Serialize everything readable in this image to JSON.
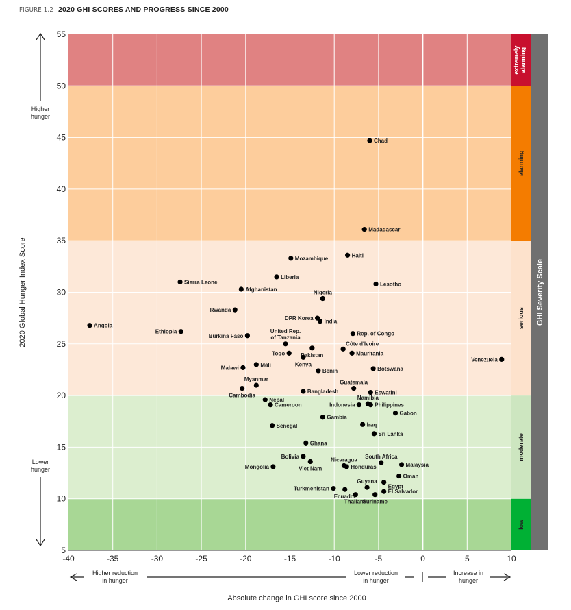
{
  "figure": {
    "number": "FIGURE 1.2",
    "title": "2020 GHI SCORES AND PROGRESS SINCE 2000"
  },
  "chart_data": {
    "type": "scatter",
    "title": "2020 GHI SCORES AND PROGRESS SINCE 2000",
    "xlabel": "Absolute change in GHI score since 2000",
    "ylabel": "2020 Global Hunger Index Score",
    "xlim": [
      -40,
      10
    ],
    "ylim": [
      5,
      55
    ],
    "xticks": [
      -40,
      -35,
      -30,
      -25,
      -20,
      -15,
      -10,
      -5,
      0,
      5,
      10
    ],
    "yticks": [
      5,
      10,
      15,
      20,
      25,
      30,
      35,
      40,
      45,
      50,
      55
    ],
    "severity_bands": [
      {
        "label": "low",
        "from": 5,
        "to": 10,
        "color": "#a8d795",
        "scale_color": "#00b034"
      },
      {
        "label": "moderate",
        "from": 10,
        "to": 20,
        "color": "#dceecf",
        "scale_color": "#cde6c0"
      },
      {
        "label": "serious",
        "from": 20,
        "to": 35,
        "color": "#fde8d8",
        "scale_color": "#fde2cc"
      },
      {
        "label": "alarming",
        "from": 35,
        "to": 50,
        "color": "#fdcd9c",
        "scale_color": "#f47c00"
      },
      {
        "label": "extremely alarming",
        "from": 50,
        "to": 55,
        "color": "#e08282",
        "scale_color": "#c8102e"
      }
    ],
    "severity_scale_label": "GHI Severity Scale",
    "y_annotations": {
      "higher": "Higher hunger",
      "lower": "Lower hunger"
    },
    "x_annotations": {
      "higher_reduction": "Higher reduction in hunger",
      "lower_reduction": "Lower reduction in hunger",
      "increase": "Increase in hunger"
    },
    "points": [
      {
        "name": "Chad",
        "x": -6.0,
        "y": 44.7,
        "pos": "right"
      },
      {
        "name": "Madagascar",
        "x": -6.6,
        "y": 36.1,
        "pos": "right"
      },
      {
        "name": "Haiti",
        "x": -8.5,
        "y": 33.6,
        "pos": "right"
      },
      {
        "name": "Mozambique",
        "x": -14.9,
        "y": 33.3,
        "pos": "right"
      },
      {
        "name": "Liberia",
        "x": -16.5,
        "y": 31.5,
        "pos": "right"
      },
      {
        "name": "Sierra Leone",
        "x": -27.4,
        "y": 31.0,
        "pos": "right"
      },
      {
        "name": "Lesotho",
        "x": -5.3,
        "y": 30.8,
        "pos": "right"
      },
      {
        "name": "Afghanistan",
        "x": -20.5,
        "y": 30.3,
        "pos": "right"
      },
      {
        "name": "Nigeria",
        "x": -11.3,
        "y": 29.4,
        "pos": "above"
      },
      {
        "name": "Rwanda",
        "x": -21.2,
        "y": 28.3,
        "pos": "left"
      },
      {
        "name": "DPR Korea",
        "x": -11.9,
        "y": 27.5,
        "pos": "left"
      },
      {
        "name": "India",
        "x": -11.6,
        "y": 27.2,
        "pos": "right"
      },
      {
        "name": "Angola",
        "x": -37.6,
        "y": 26.8,
        "pos": "right"
      },
      {
        "name": "Ethiopia",
        "x": -27.3,
        "y": 26.2,
        "pos": "left"
      },
      {
        "name": "Rep. of Congo",
        "x": -7.9,
        "y": 26.0,
        "pos": "right"
      },
      {
        "name": "Burkina Faso",
        "x": -19.8,
        "y": 25.8,
        "pos": "left"
      },
      {
        "name": "United Rep. of Tanzania",
        "x": -15.5,
        "y": 25.0,
        "pos": "above"
      },
      {
        "name": "Côte d'Ivoire",
        "x": -9.0,
        "y": 24.5,
        "pos": "right-up"
      },
      {
        "name": "Togo",
        "x": -15.1,
        "y": 24.1,
        "pos": "left"
      },
      {
        "name": "Pakistan",
        "x": -12.5,
        "y": 24.6,
        "pos": "below"
      },
      {
        "name": "Mauritania",
        "x": -8.0,
        "y": 24.1,
        "pos": "right"
      },
      {
        "name": "Kenya",
        "x": -13.5,
        "y": 23.7,
        "pos": "below"
      },
      {
        "name": "Venezuela",
        "x": 8.9,
        "y": 23.5,
        "pos": "left"
      },
      {
        "name": "Mali",
        "x": -18.8,
        "y": 23.0,
        "pos": "right"
      },
      {
        "name": "Malawi",
        "x": -20.3,
        "y": 22.7,
        "pos": "left"
      },
      {
        "name": "Botswana",
        "x": -5.6,
        "y": 22.6,
        "pos": "right"
      },
      {
        "name": "Benin",
        "x": -11.8,
        "y": 22.4,
        "pos": "right"
      },
      {
        "name": "Myanmar",
        "x": -18.8,
        "y": 21.0,
        "pos": "above"
      },
      {
        "name": "Cambodia",
        "x": -20.4,
        "y": 20.7,
        "pos": "below"
      },
      {
        "name": "Guatemala",
        "x": -7.8,
        "y": 20.7,
        "pos": "above"
      },
      {
        "name": "Bangladesh",
        "x": -13.5,
        "y": 20.4,
        "pos": "right"
      },
      {
        "name": "Eswatini",
        "x": -5.9,
        "y": 20.3,
        "pos": "right"
      },
      {
        "name": "Nepal",
        "x": -17.8,
        "y": 19.6,
        "pos": "right"
      },
      {
        "name": "Namibia",
        "x": -6.2,
        "y": 19.2,
        "pos": "above"
      },
      {
        "name": "Cameroon",
        "x": -17.2,
        "y": 19.1,
        "pos": "right"
      },
      {
        "name": "Indonesia",
        "x": -7.2,
        "y": 19.1,
        "pos": "left"
      },
      {
        "name": "Philippines",
        "x": -5.9,
        "y": 19.1,
        "pos": "right"
      },
      {
        "name": "Gabon",
        "x": -3.1,
        "y": 18.3,
        "pos": "right"
      },
      {
        "name": "Gambia",
        "x": -11.3,
        "y": 17.9,
        "pos": "right"
      },
      {
        "name": "Iraq",
        "x": -6.8,
        "y": 17.2,
        "pos": "right"
      },
      {
        "name": "Senegal",
        "x": -17.0,
        "y": 17.1,
        "pos": "right"
      },
      {
        "name": "Sri Lanka",
        "x": -5.5,
        "y": 16.3,
        "pos": "right"
      },
      {
        "name": "Ghana",
        "x": -13.2,
        "y": 15.4,
        "pos": "right"
      },
      {
        "name": "Bolivia",
        "x": -13.5,
        "y": 14.1,
        "pos": "left"
      },
      {
        "name": "Viet Nam",
        "x": -12.7,
        "y": 13.6,
        "pos": "below"
      },
      {
        "name": "South Africa",
        "x": -4.7,
        "y": 13.5,
        "pos": "above"
      },
      {
        "name": "Nicaragua",
        "x": -8.9,
        "y": 13.2,
        "pos": "above"
      },
      {
        "name": "Honduras",
        "x": -8.6,
        "y": 13.1,
        "pos": "right"
      },
      {
        "name": "Malaysia",
        "x": -2.4,
        "y": 13.3,
        "pos": "right"
      },
      {
        "name": "Mongolia",
        "x": -16.9,
        "y": 13.1,
        "pos": "left"
      },
      {
        "name": "Oman",
        "x": -2.7,
        "y": 12.2,
        "pos": "right"
      },
      {
        "name": "Egypt",
        "x": -4.4,
        "y": 11.6,
        "pos": "right-down"
      },
      {
        "name": "Guyana",
        "x": -6.3,
        "y": 11.1,
        "pos": "above"
      },
      {
        "name": "Turkmenistan",
        "x": -10.1,
        "y": 11.0,
        "pos": "left"
      },
      {
        "name": "Ecuador",
        "x": -8.8,
        "y": 10.9,
        "pos": "below"
      },
      {
        "name": "El Salvador",
        "x": -4.4,
        "y": 10.7,
        "pos": "right"
      },
      {
        "name": "Thailand",
        "x": -7.6,
        "y": 10.4,
        "pos": "below"
      },
      {
        "name": "Suriname",
        "x": -5.4,
        "y": 10.4,
        "pos": "below"
      }
    ]
  }
}
